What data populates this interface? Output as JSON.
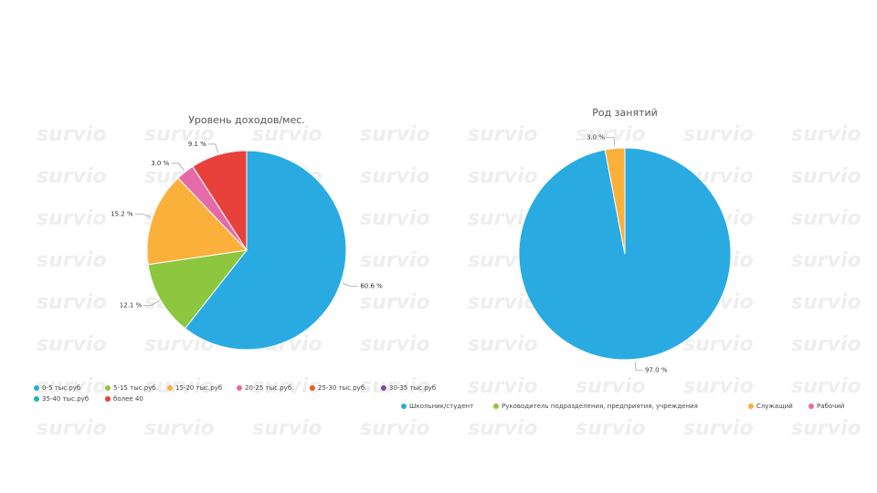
{
  "watermark": "survio",
  "chart_data": [
    {
      "type": "pie",
      "title": "Уровень доходов/мес.",
      "categories": [
        "0-5 тыс.руб",
        "5-15 тыс.руб.",
        "15-20 тыс.руб",
        "20-25 тыс.руб.",
        "25-30 тыс.руб.",
        "30-35 тыс.руб",
        "35-40 тыс.руб",
        "более 40"
      ],
      "values": [
        60.6,
        12.1,
        15.2,
        3.0,
        0,
        0,
        0,
        9.1
      ],
      "value_labels": [
        "60.6 %",
        "12.1 %",
        "15.2 %",
        "3.0 %",
        null,
        null,
        null,
        "9.1 %"
      ],
      "colors": [
        "#29abe2",
        "#8dc63f",
        "#fbb03b",
        "#e66aa8",
        "#f15a24",
        "#8e44ad",
        "#1fb5ad",
        "#e8413c"
      ]
    },
    {
      "type": "pie",
      "title": "Род занятий",
      "categories": [
        "Школьник/студент",
        "Руководитель подразделения, предприятия, учреждения",
        "Служащий",
        "Рабочий"
      ],
      "values": [
        97.0,
        0,
        3.0,
        0
      ],
      "value_labels": [
        "97.0 %",
        null,
        "3.0 %",
        null
      ],
      "colors": [
        "#29abe2",
        "#8dc63f",
        "#fbb03b",
        "#e66aa8"
      ]
    }
  ]
}
